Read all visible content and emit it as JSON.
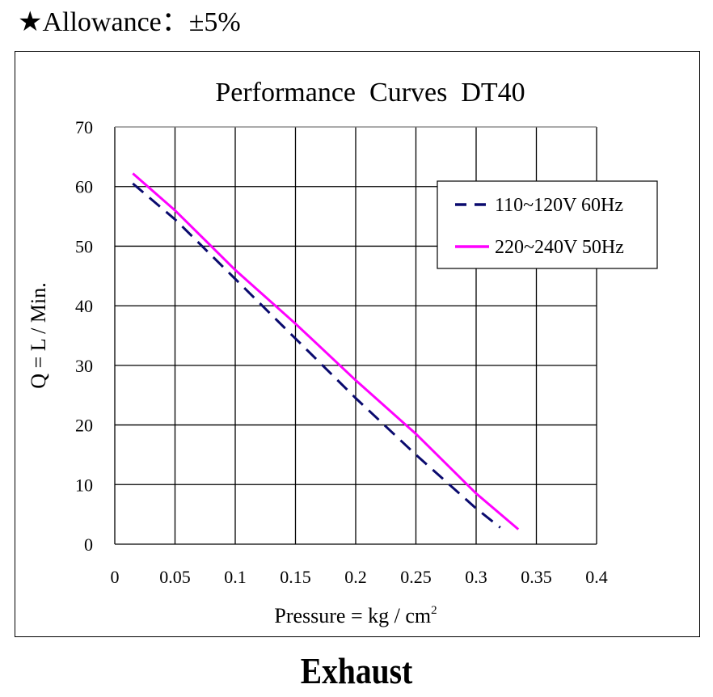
{
  "header": {
    "star_icon": "★",
    "allowance_text": "Allowance：±5%"
  },
  "caption": "Exhaust",
  "chart_data": {
    "type": "line",
    "title": "Performance  Curves  DT40",
    "xlabel": "Pressure = kg / cm",
    "xlabel_superscript": "2",
    "ylabel": "Q = L / Min.",
    "xlim": [
      0,
      0.4
    ],
    "ylim": [
      0,
      70
    ],
    "x_ticks": [
      "0",
      "0.05",
      "0.1",
      "0.15",
      "0.2",
      "0.25",
      "0.3",
      "0.35",
      "0.4"
    ],
    "y_ticks": [
      "0",
      "10",
      "20",
      "30",
      "40",
      "50",
      "60",
      "70"
    ],
    "grid": true,
    "legend_position": "upper right inside",
    "series": [
      {
        "name": "110~120V 60Hz",
        "color": "#0a0a6e",
        "style": "dashed",
        "points": [
          [
            0.015,
            60.5
          ],
          [
            0.05,
            54.5
          ],
          [
            0.1,
            44.5
          ],
          [
            0.15,
            34.5
          ],
          [
            0.2,
            24.5
          ],
          [
            0.25,
            15.0
          ],
          [
            0.3,
            6.0
          ],
          [
            0.32,
            2.8
          ]
        ]
      },
      {
        "name": "220~240V 50Hz",
        "color": "#ff00ff",
        "style": "solid",
        "points": [
          [
            0.015,
            62.2
          ],
          [
            0.05,
            56.0
          ],
          [
            0.1,
            46.0
          ],
          [
            0.15,
            37.0
          ],
          [
            0.2,
            27.5
          ],
          [
            0.25,
            18.5
          ],
          [
            0.3,
            8.5
          ],
          [
            0.335,
            2.5
          ]
        ]
      }
    ]
  }
}
